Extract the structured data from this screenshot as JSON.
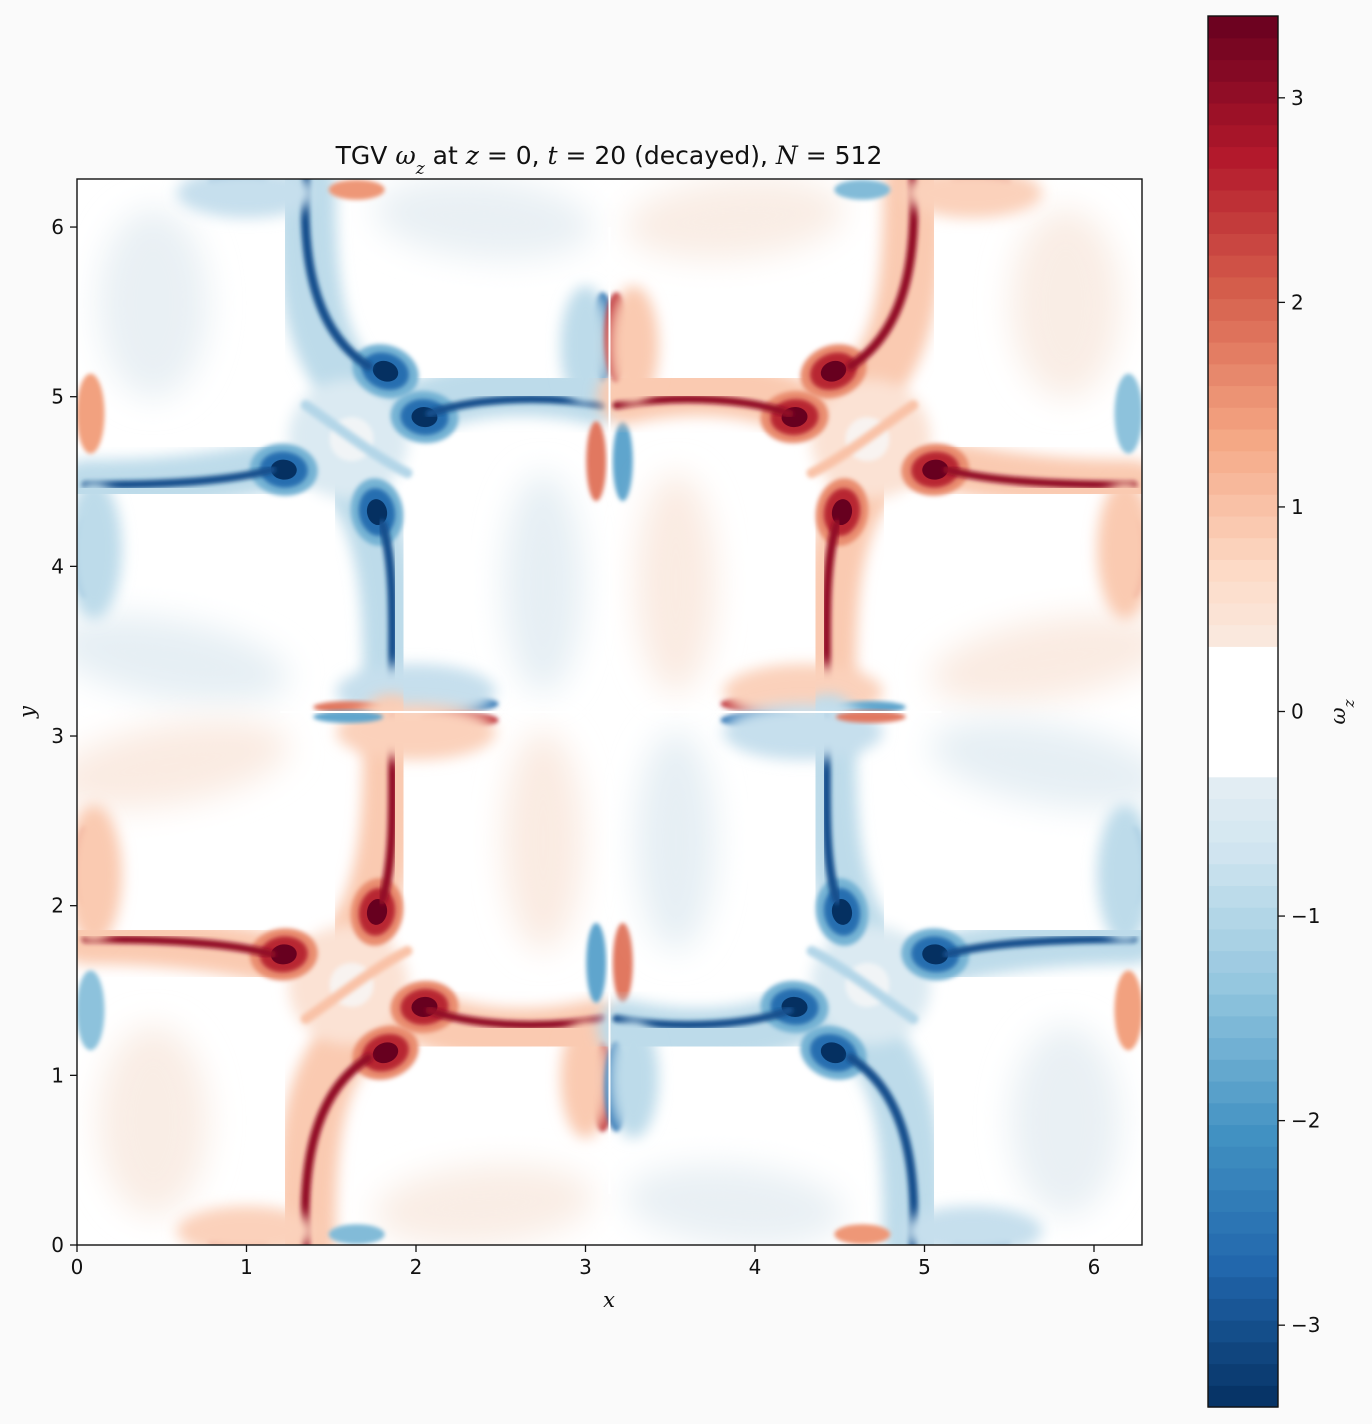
{
  "chart_data": {
    "type": "heatmap",
    "title": {
      "parts": [
        {
          "text": "TGV ",
          "math": false
        },
        {
          "text": "ω",
          "math": true,
          "sub": "z"
        },
        {
          "text": " at ",
          "math": false
        },
        {
          "text": "z",
          "math": true
        },
        {
          "text": " = 0, ",
          "math": false
        },
        {
          "text": "t",
          "math": true
        },
        {
          "text": " = 20 (decayed), ",
          "math": false
        },
        {
          "text": "N",
          "math": true
        },
        {
          "text": " = 512",
          "math": false
        }
      ]
    },
    "xlabel": "x",
    "ylabel": "y",
    "xlim": [
      0,
      6.2832
    ],
    "ylim": [
      0,
      6.2832
    ],
    "xticks": [
      0,
      1,
      2,
      3,
      4,
      5,
      6
    ],
    "yticks": [
      0,
      1,
      2,
      3,
      4,
      5,
      6
    ],
    "colorbar": {
      "label": "ω",
      "label_sub": "z",
      "colormap": "RdBu_r",
      "vmin": -3.4,
      "vmax": 3.4,
      "ticks": [
        -3,
        -2,
        -1,
        0,
        1,
        2,
        3
      ],
      "tick_labels": [
        "−3",
        "−2",
        "−1",
        "0",
        "1",
        "2",
        "3"
      ],
      "levels": 64
    },
    "field": {
      "description_free": true,
      "symmetry": "antisymmetric under x→2π−x and y→2π−y",
      "vortex_spirals": [
        {
          "x": 1.82,
          "y": 5.15,
          "sign": -1
        },
        {
          "x": 2.05,
          "y": 4.88,
          "sign": -1
        },
        {
          "x": 1.22,
          "y": 4.57,
          "sign": -1
        },
        {
          "x": 1.77,
          "y": 4.3,
          "sign": -1
        },
        {
          "x": 4.46,
          "y": 5.15,
          "sign": 1
        },
        {
          "x": 4.23,
          "y": 4.88,
          "sign": 1
        },
        {
          "x": 5.06,
          "y": 4.57,
          "sign": 1
        },
        {
          "x": 4.51,
          "y": 4.3,
          "sign": 1
        },
        {
          "x": 1.82,
          "y": 1.98,
          "sign": 1
        },
        {
          "x": 1.05,
          "y": 1.72,
          "sign": 1
        },
        {
          "x": 2.05,
          "y": 1.42,
          "sign": 1
        },
        {
          "x": 1.4,
          "y": 1.12,
          "sign": 1
        },
        {
          "x": 4.46,
          "y": 1.98,
          "sign": -1
        },
        {
          "x": 5.23,
          "y": 1.72,
          "sign": -1
        },
        {
          "x": 4.23,
          "y": 1.42,
          "sign": -1
        },
        {
          "x": 4.88,
          "y": 1.12,
          "sign": -1
        }
      ]
    }
  }
}
